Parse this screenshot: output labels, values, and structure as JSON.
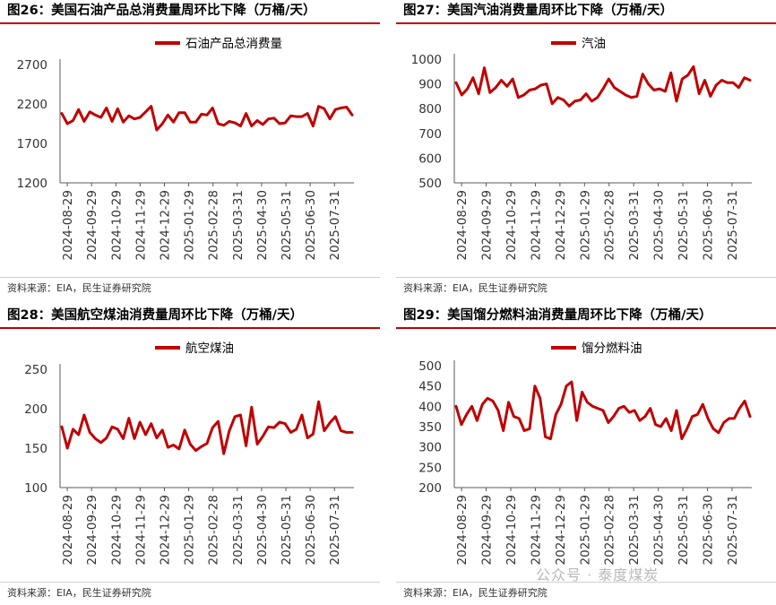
{
  "source_text": "资料来源：EIA，民生证券研究院",
  "watermark": "公众号 · 泰度煤炭",
  "line_color": "#c00000",
  "chart_data": [
    {
      "type": "line",
      "title": "图26：美国石油产品总消费量周环比下降（万桶/天）",
      "series": [
        {
          "name": "石油产品总消费量",
          "values": [
            2080,
            1950,
            1990,
            2130,
            1980,
            2100,
            2060,
            2030,
            2150,
            1980,
            2140,
            1970,
            2050,
            2010,
            2030,
            2100,
            2170,
            1870,
            1950,
            2060,
            1970,
            2090,
            2090,
            1970,
            1970,
            2070,
            2060,
            2150,
            1950,
            1930,
            1980,
            1960,
            1920,
            2080,
            1920,
            1990,
            1940,
            2010,
            2020,
            1950,
            1960,
            2050,
            2040,
            2040,
            2080,
            1920,
            2170,
            2140,
            2010,
            2130,
            2150,
            2160,
            2060
          ]
        }
      ],
      "ylim": [
        1200,
        2700
      ],
      "yticks": [
        1200,
        1700,
        2200,
        2700
      ],
      "xticks": [
        "2024-08-29",
        "2024-09-29",
        "2024-10-29",
        "2024-11-29",
        "2024-12-29",
        "2025-01-29",
        "2025-02-28",
        "2025-03-31",
        "2025-04-30",
        "2025-05-31",
        "2025-06-30",
        "2025-07-31"
      ]
    },
    {
      "type": "line",
      "title": "图27：美国汽油消费量周环比下降（万桶/天）",
      "series": [
        {
          "name": "汽油",
          "values": [
            905,
            855,
            880,
            925,
            860,
            965,
            865,
            885,
            915,
            890,
            920,
            845,
            855,
            875,
            880,
            895,
            900,
            820,
            845,
            835,
            810,
            830,
            835,
            860,
            830,
            845,
            880,
            920,
            885,
            870,
            855,
            845,
            850,
            940,
            900,
            875,
            880,
            870,
            945,
            830,
            920,
            935,
            970,
            860,
            915,
            850,
            895,
            915,
            905,
            905,
            885,
            925,
            915
          ]
        }
      ],
      "ylim": [
        500,
        1000
      ],
      "yticks": [
        500,
        600,
        700,
        800,
        900,
        1000
      ],
      "xticks": [
        "2024-08-29",
        "2024-09-29",
        "2024-10-29",
        "2024-11-29",
        "2024-12-29",
        "2025-01-29",
        "2025-02-28",
        "2025-03-31",
        "2025-04-30",
        "2025-05-31",
        "2025-06-30",
        "2025-07-31"
      ]
    },
    {
      "type": "line",
      "title": "图28：美国航空煤油消费量周环比下降（万桶/天）",
      "series": [
        {
          "name": "航空煤油",
          "values": [
            177,
            150,
            174,
            167,
            192,
            170,
            162,
            157,
            163,
            177,
            174,
            162,
            188,
            162,
            183,
            167,
            181,
            163,
            173,
            151,
            154,
            149,
            173,
            155,
            147,
            152,
            156,
            176,
            184,
            143,
            172,
            190,
            192,
            153,
            202,
            155,
            165,
            177,
            176,
            183,
            181,
            170,
            174,
            192,
            163,
            168,
            209,
            172,
            182,
            190,
            172,
            170,
            170
          ]
        }
      ],
      "ylim": [
        100,
        250
      ],
      "yticks": [
        100,
        150,
        200,
        250
      ],
      "xticks": [
        "2024-08-29",
        "2024-09-29",
        "2024-10-29",
        "2024-11-29",
        "2024-12-29",
        "2025-01-29",
        "2025-02-28",
        "2025-03-31",
        "2025-04-30",
        "2025-05-31",
        "2025-06-30",
        "2025-07-31"
      ]
    },
    {
      "type": "line",
      "title": "图29：美国馏分燃料油消费量周环比下降（万桶/天）",
      "series": [
        {
          "name": "馏分燃料油",
          "values": [
            400,
            355,
            380,
            400,
            365,
            405,
            420,
            413,
            390,
            340,
            410,
            375,
            370,
            340,
            345,
            450,
            420,
            325,
            320,
            380,
            405,
            450,
            460,
            365,
            435,
            410,
            400,
            395,
            390,
            360,
            375,
            395,
            400,
            385,
            390,
            365,
            375,
            395,
            355,
            350,
            370,
            340,
            390,
            320,
            345,
            375,
            380,
            405,
            370,
            345,
            335,
            360,
            370,
            370,
            395,
            413,
            375
          ]
        }
      ],
      "ylim": [
        200,
        500
      ],
      "yticks": [
        200,
        250,
        300,
        350,
        400,
        450,
        500
      ],
      "xticks": [
        "2024-08-29",
        "2024-09-29",
        "2024-10-29",
        "2024-11-29",
        "2024-12-29",
        "2025-01-29",
        "2025-02-28",
        "2025-03-31",
        "2025-04-30",
        "2025-05-31",
        "2025-06-30",
        "2025-07-31"
      ]
    }
  ]
}
